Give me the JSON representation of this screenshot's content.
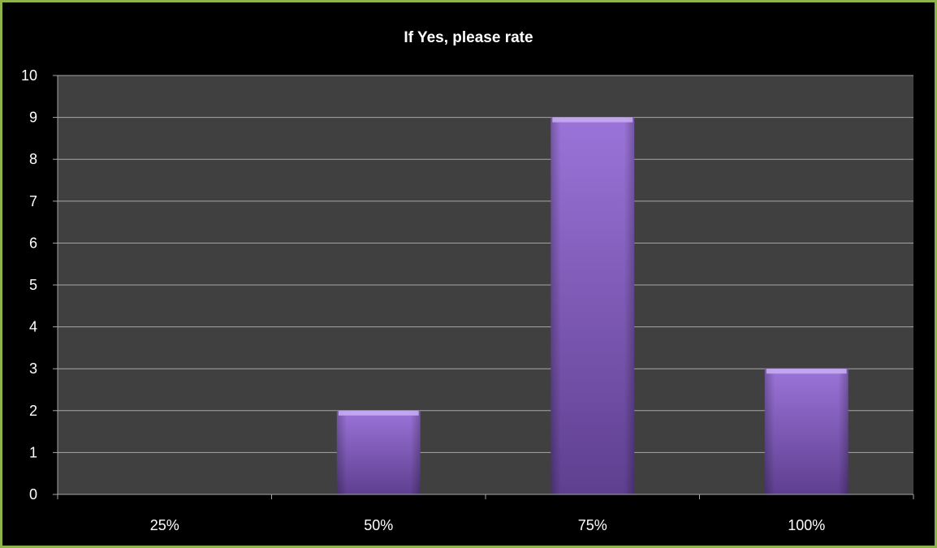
{
  "chart_data": {
    "type": "bar",
    "title": "If Yes, please rate",
    "categories": [
      "25%",
      "50%",
      "75%",
      "100%"
    ],
    "values": [
      0,
      2,
      9,
      3
    ],
    "xlabel": "",
    "ylabel": "",
    "ylim": [
      0,
      10
    ],
    "yticks": [
      "0",
      "1",
      "2",
      "3",
      "4",
      "5",
      "6",
      "7",
      "8",
      "9",
      "10"
    ],
    "grid": true,
    "legend": "none"
  },
  "colors": {
    "frame_border": "#8db34a",
    "background": "#000000",
    "plot_area": "#404040",
    "gridline": "#a6a6a6",
    "bar_top": "#9b74d9",
    "bar_bottom": "#5e3f8f",
    "text": "#ffffff"
  }
}
